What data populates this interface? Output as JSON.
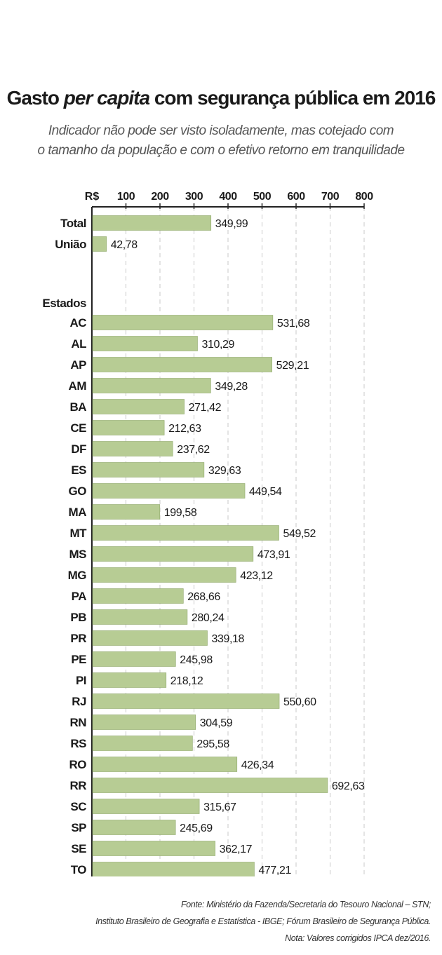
{
  "title": {
    "pre": "Gasto ",
    "em": "per capita",
    "post": " com segurança pública em 2016"
  },
  "subtitle": {
    "line1": "Indicador não pode ser visto isoladamente, mas cotejado com",
    "line2": "o tamanho da população e com o efetivo retorno em tranquilidade"
  },
  "footer": {
    "line1": "Fonte:  Ministério da Fazenda/Secretaria do Tesouro Nacional – STN;",
    "line2": "Instituto Brasileiro de Geografia e Estatística - IBGE; Fórum Brasileiro de Segurança Pública.",
    "line3": "Nota: Valores corrigidos IPCA dez/2016."
  },
  "colors": {
    "bar": "#b7cc94",
    "bar_edge": "#8fa86c",
    "axis": "#222222",
    "grid": "#c8c8c8"
  },
  "chart_data": {
    "type": "bar",
    "orientation": "horizontal",
    "currency_label": "R$",
    "xlim": [
      0,
      800
    ],
    "xticks": [
      "100",
      "200",
      "300",
      "400",
      "500",
      "600",
      "700",
      "800"
    ],
    "grid": true,
    "section_label": "Estados",
    "groups": [
      {
        "label": "",
        "categories": [
          "Total",
          "União"
        ],
        "values": [
          349.99,
          42.78
        ],
        "value_labels": [
          "349,99",
          "42,78"
        ]
      },
      {
        "label": "Estados",
        "categories": [
          "AC",
          "AL",
          "AP",
          "AM",
          "BA",
          "CE",
          "DF",
          "ES",
          "GO",
          "MA",
          "MT",
          "MS",
          "MG",
          "PA",
          "PB",
          "PR",
          "PE",
          "PI",
          "RJ",
          "RN",
          "RS",
          "RO",
          "RR",
          "SC",
          "SP",
          "SE",
          "TO"
        ],
        "values": [
          531.68,
          310.29,
          529.21,
          349.28,
          271.42,
          212.63,
          237.62,
          329.63,
          449.54,
          199.58,
          549.52,
          473.91,
          423.12,
          268.66,
          280.24,
          339.18,
          245.98,
          218.12,
          550.6,
          304.59,
          295.58,
          426.34,
          692.63,
          315.67,
          245.69,
          362.17,
          477.21
        ],
        "value_labels": [
          "531,68",
          "310,29",
          "529,21",
          "349,28",
          "271,42",
          "212,63",
          "237,62",
          "329,63",
          "449,54",
          "199,58",
          "549,52",
          "473,91",
          "423,12",
          "268,66",
          "280,24",
          "339,18",
          "245,98",
          "218,12",
          "550,60",
          "304,59",
          "295,58",
          "426,34",
          "692,63",
          "315,67",
          "245,69",
          "362,17",
          "477,21"
        ]
      }
    ]
  }
}
